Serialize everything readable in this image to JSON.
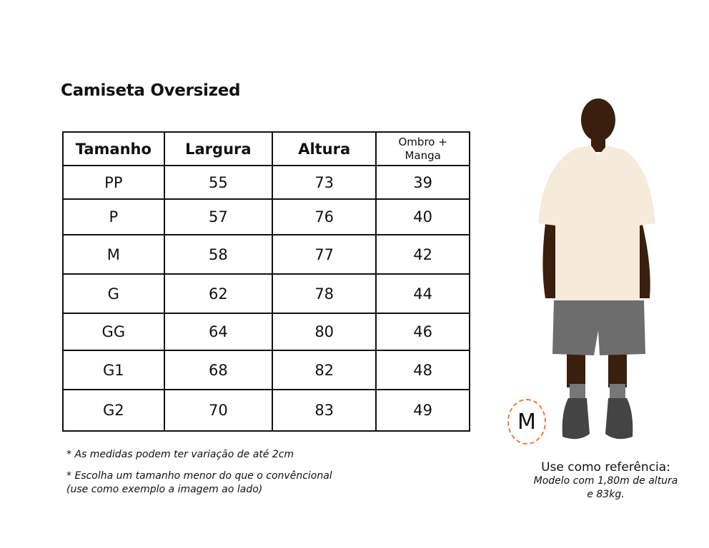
{
  "title": "Camiseta Oversized",
  "table": {
    "headers": [
      "Tamanho",
      "Largura",
      "Altura",
      "Ombro + Manga"
    ],
    "rows": [
      [
        "PP",
        "55",
        "73",
        "39"
      ],
      [
        "P",
        "57",
        "76",
        "40"
      ],
      [
        "M",
        "58",
        "77",
        "42"
      ],
      [
        "G",
        "62",
        "78",
        "44"
      ],
      [
        "GG",
        "64",
        "80",
        "46"
      ],
      [
        "G1",
        "68",
        "82",
        "48"
      ],
      [
        "G2",
        "70",
        "83",
        "49"
      ]
    ]
  },
  "notes": [
    "* As medidas podem ter variação de até 2cm",
    "* Escolha um tamanho menor do que o convêncional",
    "(use como exemplo a imagem ao lado)"
  ],
  "model": {
    "size_badge": "M",
    "reference_heading": "Use como referência:",
    "reference_line1": "Modelo com 1,80m de altura",
    "reference_line2": "e 83kg.",
    "shirt_color": "#f6eadb",
    "shorts_color": "#6d6d6d",
    "badge_color": "#f07a32"
  }
}
